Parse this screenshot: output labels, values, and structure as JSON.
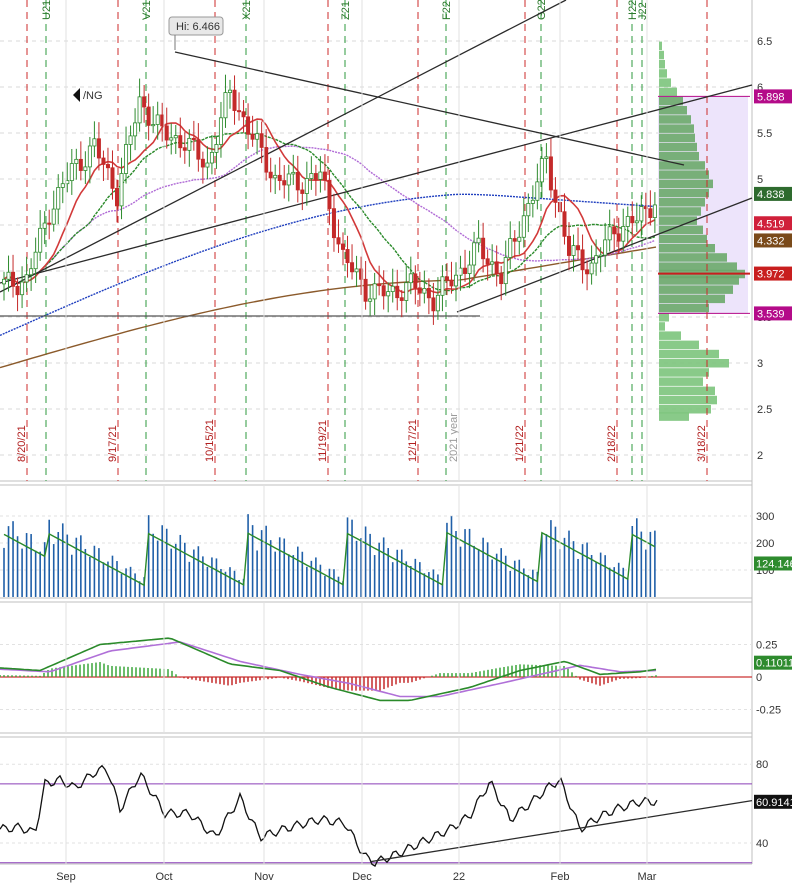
{
  "chart_data": {
    "type": "candlestick",
    "symbol": "/NG",
    "annotations": {
      "high_label": "Hi: 6.466",
      "year_marker": "2021 year"
    },
    "price_axis": {
      "range": [
        1.75,
        6.72
      ],
      "ticks": [
        "6.5",
        "6",
        "5.5",
        "5",
        "4.5",
        "4",
        "3.5",
        "3",
        "2.5",
        "2"
      ]
    },
    "time_axis": [
      "Sep",
      "Oct",
      "Nov",
      "Dec",
      "22",
      "Feb",
      "Mar"
    ],
    "expiration_dates": [
      "8/20/21",
      "9/17/21",
      "10/15/21",
      "11/19/21",
      "12/17/21",
      "1/21/22",
      "2/18/22",
      "3/18/22"
    ],
    "contract_labels": [
      "U21",
      "V21",
      "X21",
      "Z21",
      "F22",
      "G22",
      "H22",
      "J22"
    ],
    "price_tags": [
      {
        "value": "5.898",
        "color": "#b40b89"
      },
      {
        "value": "4.838",
        "color": "#2e6b2e"
      },
      {
        "value": "4.519",
        "color": "#d0203a"
      },
      {
        "value": "4.332",
        "color": "#7a4a1a"
      },
      {
        "value": "3.972",
        "color": "#c81e1e"
      },
      {
        "value": "3.539",
        "color": "#b40b89"
      }
    ],
    "candles_weekly_approx": [
      {
        "date": "Aug 16",
        "close": 3.85
      },
      {
        "date": "Aug 23",
        "close": 3.9
      },
      {
        "date": "Aug 30",
        "close": 4.65
      },
      {
        "date": "Sep 06",
        "close": 5.1
      },
      {
        "date": "Sep 13",
        "close": 5.35
      },
      {
        "date": "Sep 20",
        "close": 4.85
      },
      {
        "date": "Sep 27",
        "close": 5.85
      },
      {
        "date": "Oct 04",
        "close": 5.5
      },
      {
        "date": "Oct 11",
        "close": 5.4
      },
      {
        "date": "Oct 18",
        "close": 5.15
      },
      {
        "date": "Oct 25",
        "close": 5.95
      },
      {
        "date": "Nov 01",
        "close": 5.45
      },
      {
        "date": "Nov 08",
        "close": 5.0
      },
      {
        "date": "Nov 15",
        "close": 4.95
      },
      {
        "date": "Nov 22",
        "close": 5.05
      },
      {
        "date": "Nov 29",
        "close": 4.15
      },
      {
        "date": "Dec 06",
        "close": 3.8
      },
      {
        "date": "Dec 13",
        "close": 3.75
      },
      {
        "date": "Dec 20",
        "close": 3.85
      },
      {
        "date": "Dec 27",
        "close": 3.7
      },
      {
        "date": "Jan 03",
        "close": 3.95
      },
      {
        "date": "Jan 10",
        "close": 4.25
      },
      {
        "date": "Jan 17",
        "close": 3.95
      },
      {
        "date": "Jan 24",
        "close": 4.6
      },
      {
        "date": "Jan 31",
        "close": 5.2
      },
      {
        "date": "Feb 07",
        "close": 4.2
      },
      {
        "date": "Feb 14",
        "close": 4.05
      },
      {
        "date": "Feb 21",
        "close": 4.45
      },
      {
        "date": "Feb 28",
        "close": 4.55
      },
      {
        "date": "Mar 04",
        "close": 4.84
      }
    ],
    "panels": [
      {
        "name": "volume",
        "ticks": [
          "300",
          "200",
          "100"
        ],
        "last_value": "124.146"
      },
      {
        "name": "macd",
        "ticks": [
          "0.25",
          "0",
          "-0.25"
        ],
        "last_value": "0.11011"
      },
      {
        "name": "rsi",
        "ticks": [
          "80",
          "40"
        ],
        "last_value": "60.9141"
      }
    ],
    "legend": "none"
  }
}
